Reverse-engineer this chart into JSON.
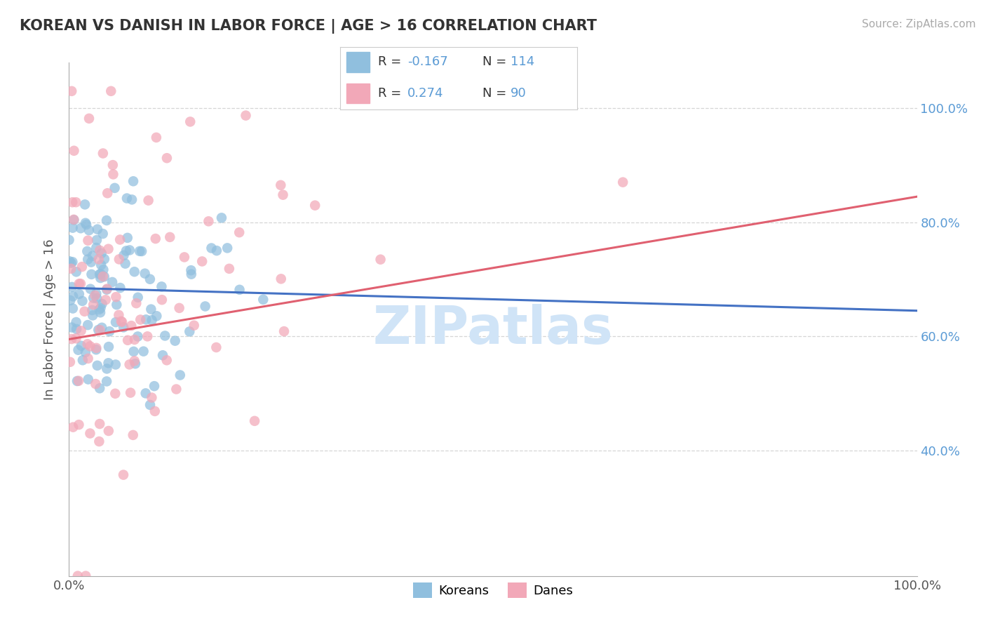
{
  "title": "KOREAN VS DANISH IN LABOR FORCE | AGE > 16 CORRELATION CHART",
  "source_text": "Source: ZipAtlas.com",
  "ylabel": "In Labor Force | Age > 16",
  "xlim": [
    0.0,
    1.0
  ],
  "ylim": [
    0.18,
    1.08
  ],
  "korean_color": "#90BFDE",
  "danish_color": "#F2A8B8",
  "korean_line_color": "#4472C4",
  "danish_line_color": "#E06070",
  "korean_R": -0.167,
  "korean_N": 114,
  "danish_R": 0.274,
  "danish_N": 90,
  "legend_label_korean": "Koreans",
  "legend_label_danish": "Danes",
  "background_color": "#FFFFFF",
  "grid_color": "#CCCCCC",
  "title_color": "#333333",
  "label_color": "#5B9BD5",
  "watermark_text": "ZIPatlas",
  "watermark_color": "#D0E4F7",
  "right_ytick_labels": [
    "40.0%",
    "60.0%",
    "80.0%",
    "100.0%"
  ],
  "right_ytick_values": [
    0.4,
    0.6,
    0.8,
    1.0
  ],
  "korean_line_x0": 0.0,
  "korean_line_x1": 1.0,
  "korean_line_y0": 0.685,
  "korean_line_y1": 0.645,
  "danish_line_x0": 0.0,
  "danish_line_x1": 1.0,
  "danish_line_y0": 0.595,
  "danish_line_y1": 0.845
}
